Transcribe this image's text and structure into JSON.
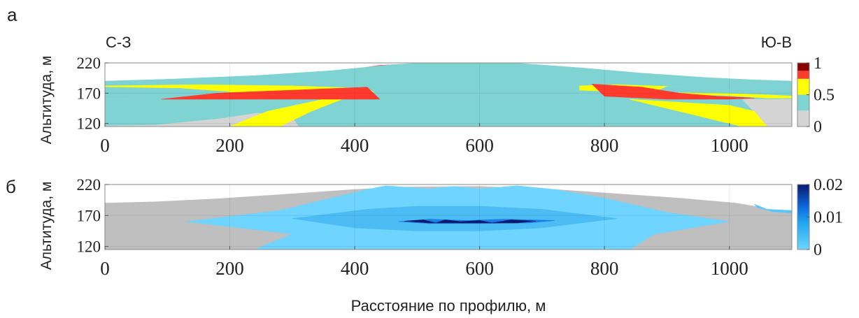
{
  "figure": {
    "shared_xlabel": "Расстояние по профилю, м"
  },
  "chart_data": [
    {
      "type": "heatmap",
      "panel_label": "а",
      "direction_left": "С-З",
      "direction_right": "Ю-В",
      "ylabel": "Альтитуда, м",
      "xlim": [
        0,
        1100
      ],
      "ylim": [
        115,
        220
      ],
      "x_ticks": [
        0,
        200,
        400,
        600,
        800,
        1000
      ],
      "y_ticks": [
        120,
        170,
        220
      ],
      "colorbar": {
        "ticks": [
          0,
          0.5,
          1
        ],
        "range": [
          0,
          1
        ],
        "bands": [
          {
            "from": 0.0,
            "to": 0.25,
            "color": "#d4d4d4"
          },
          {
            "from": 0.25,
            "to": 0.5,
            "color": "#7fd3d3"
          },
          {
            "from": 0.5,
            "to": 0.75,
            "color": "#ffff00"
          },
          {
            "from": 0.75,
            "to": 0.875,
            "color": "#ff3b2e"
          },
          {
            "from": 0.875,
            "to": 1.0,
            "color": "#8b0000"
          }
        ]
      },
      "regions": [
        {
          "value_class": 0.9,
          "color": "#8b0000",
          "polygon": [
            [
              0,
              181
            ],
            [
              10,
              183
            ],
            [
              80,
              186
            ],
            [
              180,
              192
            ],
            [
              300,
              198
            ],
            [
              350,
              203
            ],
            [
              420,
              210
            ],
            [
              480,
              215
            ],
            [
              520,
              217
            ],
            [
              600,
              217
            ],
            [
              720,
              212
            ],
            [
              800,
              205
            ],
            [
              880,
              196
            ],
            [
              960,
              190
            ],
            [
              1010,
              186
            ],
            [
              1040,
              183
            ],
            [
              1060,
              177
            ],
            [
              1100,
              176
            ],
            [
              1100,
              115
            ],
            [
              0,
              115
            ]
          ]
        },
        {
          "value_class": 0.8,
          "color": "#ff3b2e",
          "polygon": [
            [
              0,
              185
            ],
            [
              80,
              188
            ],
            [
              180,
              194
            ],
            [
              320,
              200
            ],
            [
              400,
              210
            ],
            [
              440,
              216
            ],
            [
              480,
              218
            ],
            [
              600,
              218
            ],
            [
              640,
              217
            ],
            [
              760,
              210
            ],
            [
              860,
              200
            ],
            [
              960,
              193
            ],
            [
              1010,
              189
            ],
            [
              1040,
              187
            ],
            [
              1060,
              182
            ],
            [
              1100,
              180
            ],
            [
              1100,
              115
            ],
            [
              0,
              115
            ]
          ]
        },
        {
          "value_class": 0.6,
          "color": "#ffff00",
          "polygon": [
            [
              0,
              187
            ],
            [
              100,
              190
            ],
            [
              220,
              197
            ],
            [
              340,
              204
            ],
            [
              440,
              214
            ],
            [
              500,
              219
            ],
            [
              640,
              219
            ],
            [
              780,
              210
            ],
            [
              880,
              200
            ],
            [
              960,
              195
            ],
            [
              1020,
              190
            ],
            [
              1060,
              185
            ],
            [
              1100,
              183
            ],
            [
              1100,
              115
            ],
            [
              0,
              115
            ]
          ]
        },
        {
          "value_class": 0.4,
          "color": "#7fd3d3",
          "polygon": [
            [
              0,
              190
            ],
            [
              100,
              193
            ],
            [
              240,
              199
            ],
            [
              360,
              207
            ],
            [
              420,
              213
            ],
            [
              460,
              217
            ],
            [
              500,
              219.5
            ],
            [
              660,
              219.5
            ],
            [
              760,
              212
            ],
            [
              860,
              203
            ],
            [
              960,
              196
            ],
            [
              1040,
              192
            ],
            [
              1100,
              190
            ],
            [
              1100,
              115
            ],
            [
              0,
              115
            ]
          ]
        },
        {
          "value_class": 0.1,
          "color": "#d4d4d4",
          "polygon": [
            [
              0,
              160
            ],
            [
              40,
              160
            ],
            [
              140,
              150
            ],
            [
              240,
              138
            ],
            [
              300,
              130
            ],
            [
              310,
              115
            ],
            [
              0,
              115
            ]
          ]
        },
        {
          "value_class": 0.1,
          "color": "#d4d4d4",
          "polygon": [
            [
              1020,
              160
            ],
            [
              1100,
              160
            ],
            [
              1100,
              115
            ],
            [
              1060,
              115
            ]
          ]
        },
        {
          "value_class": 0.4,
          "color": "#7fd3d3",
          "polygon": [
            [
              0,
              160
            ],
            [
              150,
              160
            ],
            [
              260,
              160
            ],
            [
              360,
              160
            ],
            [
              290,
              145
            ],
            [
              180,
              128
            ],
            [
              80,
              118
            ],
            [
              0,
              117
            ]
          ]
        },
        {
          "value_class": 0.4,
          "color": "#7fd3d3",
          "polygon": [
            [
              800,
              160
            ],
            [
              1020,
              160
            ],
            [
              1060,
              115
            ],
            [
              950,
              115
            ],
            [
              880,
              140
            ]
          ]
        },
        {
          "value_class": 0.6,
          "color": "#ffff00",
          "polygon": [
            [
              200,
              115
            ],
            [
              260,
              140
            ],
            [
              350,
              160
            ],
            [
              380,
              160
            ],
            [
              330,
              140
            ],
            [
              280,
              115
            ]
          ]
        },
        {
          "value_class": 0.6,
          "color": "#ffff00",
          "polygon": [
            [
              840,
              160
            ],
            [
              1000,
              150
            ],
            [
              1040,
              140
            ],
            [
              1060,
              115
            ],
            [
              1020,
              115
            ],
            [
              960,
              130
            ],
            [
              880,
              150
            ]
          ]
        },
        {
          "value_class": 0.6,
          "color": "#ffff00",
          "polygon": [
            [
              0,
              178
            ],
            [
              80,
              176
            ],
            [
              180,
              172
            ],
            [
              300,
              170
            ],
            [
              430,
              172
            ],
            [
              420,
              178
            ],
            [
              300,
              182
            ],
            [
              150,
              184
            ],
            [
              0,
              182
            ]
          ]
        },
        {
          "value_class": 0.6,
          "color": "#ffff00",
          "polygon": [
            [
              760,
              175
            ],
            [
              880,
              170
            ],
            [
              1000,
              166
            ],
            [
              1060,
              162
            ],
            [
              1100,
              162
            ],
            [
              1100,
              168
            ],
            [
              1040,
              175
            ],
            [
              940,
              180
            ],
            [
              820,
              184
            ],
            [
              760,
              182
            ]
          ]
        },
        {
          "value_class": 0.4,
          "color": "#7fd3d3",
          "polygon": [
            [
              0,
              165
            ],
            [
              80,
              168
            ],
            [
              200,
              172
            ],
            [
              120,
              178
            ],
            [
              0,
              180
            ]
          ]
        },
        {
          "value_class": 0.4,
          "color": "#7fd3d3",
          "polygon": [
            [
              880,
              172
            ],
            [
              1000,
              170
            ],
            [
              1060,
              168
            ],
            [
              1100,
              166
            ],
            [
              1100,
              175
            ],
            [
              1000,
              180
            ],
            [
              900,
              181
            ]
          ]
        },
        {
          "value_class": 0.8,
          "color": "#ff3b2e",
          "polygon": [
            [
              90,
              160
            ],
            [
              180,
              170
            ],
            [
              300,
              175
            ],
            [
              420,
              180
            ],
            [
              440,
              160
            ]
          ]
        },
        {
          "value_class": 0.8,
          "color": "#ff3b2e",
          "polygon": [
            [
              780,
              185
            ],
            [
              860,
              180
            ],
            [
              920,
              170
            ],
            [
              980,
              165
            ],
            [
              1040,
              162
            ],
            [
              1000,
              160
            ],
            [
              900,
              160
            ],
            [
              800,
              165
            ]
          ]
        }
      ]
    },
    {
      "type": "heatmap",
      "panel_label": "б",
      "ylabel": "Альтитуда, м",
      "xlim": [
        0,
        1100
      ],
      "ylim": [
        115,
        220
      ],
      "x_ticks": [
        0,
        200,
        400,
        600,
        800,
        1000
      ],
      "y_ticks": [
        120,
        170,
        220
      ],
      "colorbar": {
        "ticks": [
          0,
          0.01,
          0.02
        ],
        "range": [
          0,
          0.02
        ],
        "stops": [
          {
            "value": 0.0,
            "color": "#6fd4ff"
          },
          {
            "value": 0.008,
            "color": "#21a8f0"
          },
          {
            "value": 0.013,
            "color": "#0d6be0"
          },
          {
            "value": 0.02,
            "color": "#0a1a6b"
          }
        ]
      },
      "regions": [
        {
          "value_class": "background",
          "color": "#bfbfbf",
          "polygon": [
            [
              0,
              190
            ],
            [
              80,
              192
            ],
            [
              180,
              197
            ],
            [
              300,
              205
            ],
            [
              400,
              212
            ],
            [
              480,
              216
            ],
            [
              600,
              217
            ],
            [
              720,
              212
            ],
            [
              820,
              205
            ],
            [
              920,
              198
            ],
            [
              1010,
              190
            ],
            [
              1040,
              185
            ],
            [
              1060,
              179
            ],
            [
              1100,
              178
            ],
            [
              1100,
              115
            ],
            [
              0,
              115
            ]
          ]
        },
        {
          "value_class": 0.002,
          "color": "#6fd4ff",
          "polygon": [
            [
              130,
              160
            ],
            [
              280,
              178
            ],
            [
              350,
              195
            ],
            [
              420,
              212
            ],
            [
              450,
              218
            ],
            [
              520,
              213
            ],
            [
              560,
              217
            ],
            [
              600,
              213
            ],
            [
              660,
              218
            ],
            [
              720,
              212
            ],
            [
              800,
              198
            ],
            [
              900,
              175
            ],
            [
              1000,
              160
            ],
            [
              880,
              140
            ],
            [
              840,
              115
            ],
            [
              240,
              115
            ],
            [
              300,
              140
            ]
          ]
        },
        {
          "value_class": 0.006,
          "color": "#4cbcf5",
          "polygon": [
            [
              300,
              165
            ],
            [
              420,
              180
            ],
            [
              500,
              185
            ],
            [
              600,
              185
            ],
            [
              700,
              180
            ],
            [
              820,
              165
            ],
            [
              700,
              150
            ],
            [
              600,
              145
            ],
            [
              500,
              145
            ],
            [
              400,
              150
            ]
          ]
        },
        {
          "value_class": 0.012,
          "color": "#1a7ee8",
          "polygon": [
            [
              470,
              160
            ],
            [
              520,
              164
            ],
            [
              580,
              162
            ],
            [
              640,
              164
            ],
            [
              720,
              162
            ],
            [
              680,
              158
            ],
            [
              600,
              157
            ],
            [
              520,
              157
            ]
          ]
        },
        {
          "value_class": 0.018,
          "color": "#0a1a6b",
          "polygon": [
            [
              480,
              161
            ],
            [
              510,
              163
            ],
            [
              530,
              158
            ],
            [
              545,
              163
            ],
            [
              570,
              160
            ],
            [
              600,
              162
            ],
            [
              620,
              158
            ],
            [
              650,
              163
            ],
            [
              690,
              161
            ],
            [
              660,
              158
            ],
            [
              600,
              158
            ],
            [
              520,
              158
            ]
          ]
        },
        {
          "value_class": 0.003,
          "color": "#57c6f8",
          "polygon": [
            [
              1040,
              188
            ],
            [
              1060,
              180
            ],
            [
              1100,
              178
            ],
            [
              1100,
              174
            ],
            [
              1070,
              176
            ],
            [
              1045,
              183
            ]
          ]
        }
      ]
    }
  ]
}
